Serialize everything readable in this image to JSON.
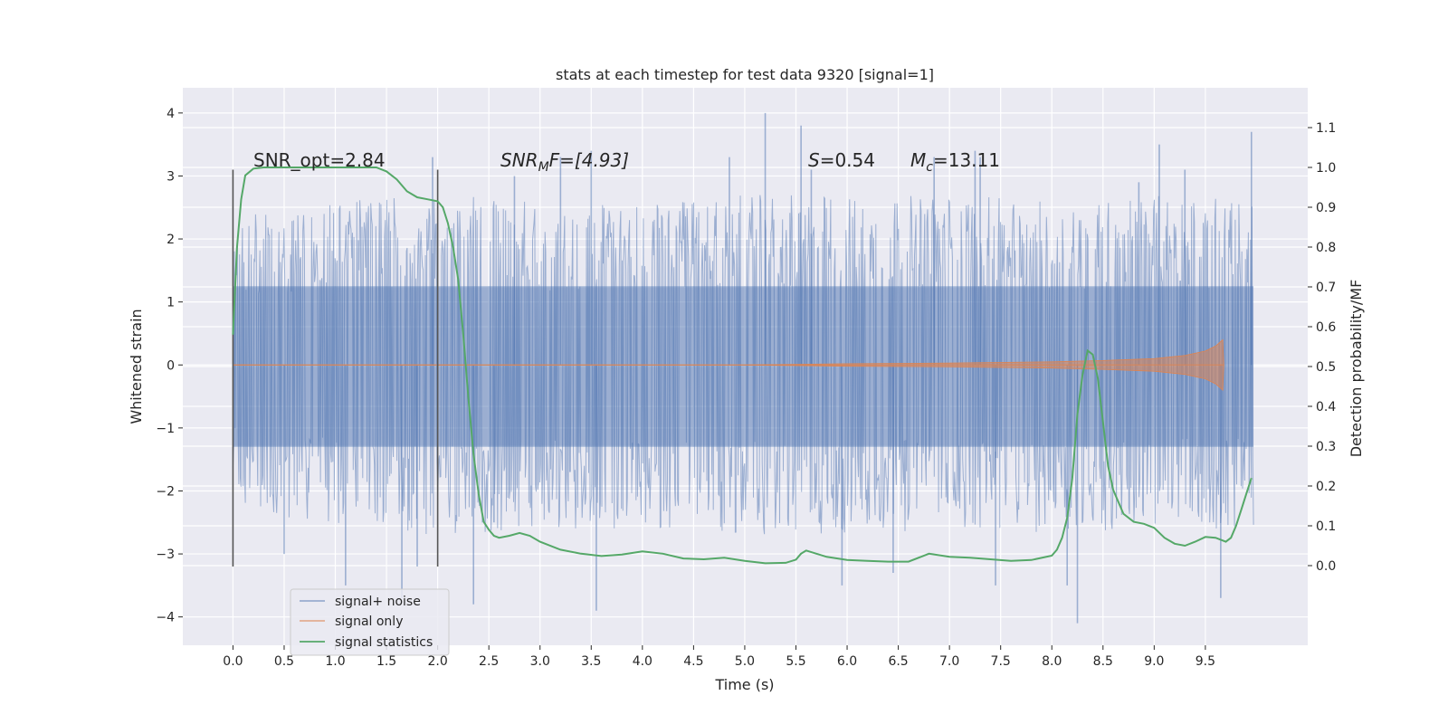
{
  "chart_data": {
    "type": "line",
    "title": "stats at each timestep for test data 9320 [signal=1]",
    "xlabel": "Time (s)",
    "ylabel_left": "Whitened strain",
    "ylabel_right": "Detection probability/MF",
    "xlim": [
      -0.49,
      10.5
    ],
    "ylim_left": [
      -4.45,
      4.4
    ],
    "ylim_right": [
      -0.2,
      1.2
    ],
    "x_ticks": [
      "0.0",
      "0.5",
      "1.0",
      "1.5",
      "2.0",
      "2.5",
      "3.0",
      "3.5",
      "4.0",
      "4.5",
      "5.0",
      "5.5",
      "6.0",
      "6.5",
      "7.0",
      "7.5",
      "8.0",
      "8.5",
      "9.0",
      "9.5"
    ],
    "y_left_ticks": [
      "4",
      "3",
      "2",
      "1",
      "0",
      "−1",
      "−2",
      "−3",
      "−4"
    ],
    "y_right_ticks": [
      "1.1",
      "1.0",
      "0.9",
      "0.8",
      "0.7",
      "0.6",
      "0.5",
      "0.4",
      "0.3",
      "0.2",
      "0.1",
      "0.0"
    ],
    "grid": true,
    "legend_position": "lower-left",
    "annotations": {
      "snr_opt": "SNR_opt=2.84",
      "snr_mf_base": "SNR",
      "snr_mf_sub": "M",
      "snr_mf_rest": "F=[4.93]",
      "s_var": "S",
      "s_value": "=0.54",
      "mc_base": "M",
      "mc_sub": "c",
      "mc_value": "=13.11"
    },
    "window_markers_x": [
      0.0,
      2.0
    ],
    "window_marker_range": [
      -3.2,
      3.1
    ],
    "series": [
      {
        "name": "signal+ noise",
        "color": "#4c72b0",
        "x_range": [
          0.0,
          9.97
        ],
        "band_core": [
          -1.3,
          1.25
        ],
        "envelope_top": [
          [
            0.0,
            2.4
          ],
          [
            1.0,
            2.6
          ],
          [
            2.0,
            2.7
          ],
          [
            3.0,
            2.6
          ],
          [
            4.0,
            2.6
          ],
          [
            5.0,
            2.7
          ],
          [
            6.0,
            2.7
          ],
          [
            7.0,
            2.7
          ],
          [
            8.0,
            2.6
          ],
          [
            9.0,
            2.7
          ],
          [
            9.97,
            2.6
          ]
        ],
        "envelope_bottom": [
          [
            0.0,
            -2.2
          ],
          [
            1.0,
            -2.6
          ],
          [
            2.0,
            -2.7
          ],
          [
            3.0,
            -2.6
          ],
          [
            4.0,
            -2.6
          ],
          [
            5.0,
            -2.7
          ],
          [
            6.0,
            -2.7
          ],
          [
            7.0,
            -2.6
          ],
          [
            8.0,
            -2.7
          ],
          [
            9.0,
            -2.6
          ],
          [
            9.97,
            -2.6
          ]
        ],
        "spikes": [
          [
            1.95,
            3.3
          ],
          [
            2.55,
            -2.5
          ],
          [
            2.75,
            3.0
          ],
          [
            3.2,
            3.3
          ],
          [
            3.5,
            3.4
          ],
          [
            3.55,
            -3.9
          ],
          [
            4.85,
            3.3
          ],
          [
            5.2,
            4.0
          ],
          [
            5.55,
            3.8
          ],
          [
            5.65,
            3.1
          ],
          [
            5.95,
            -3.5
          ],
          [
            6.45,
            -3.3
          ],
          [
            6.85,
            3.3
          ],
          [
            7.25,
            3.4
          ],
          [
            7.3,
            3.3
          ],
          [
            7.45,
            -3.5
          ],
          [
            8.15,
            -3.5
          ],
          [
            8.25,
            -4.1
          ],
          [
            8.85,
            2.9
          ],
          [
            9.05,
            3.5
          ],
          [
            9.3,
            3.1
          ],
          [
            9.65,
            -3.7
          ],
          [
            9.95,
            3.7
          ],
          [
            1.65,
            -3.7
          ],
          [
            1.8,
            -3.2
          ],
          [
            2.35,
            -3.8
          ],
          [
            0.5,
            -3.0
          ],
          [
            1.1,
            -3.5
          ]
        ]
      },
      {
        "name": "signal only",
        "color": "#dd8452",
        "x": [
          0.0,
          5.0,
          6.0,
          7.0,
          8.0,
          8.5,
          9.0,
          9.3,
          9.5,
          9.6,
          9.67,
          9.68
        ],
        "amplitude": [
          0.0,
          0.0,
          0.02,
          0.03,
          0.05,
          0.07,
          0.1,
          0.15,
          0.22,
          0.3,
          0.4,
          0.0
        ]
      },
      {
        "name": "signal statistics",
        "color": "#55a868",
        "axis": "right",
        "x": [
          0.0,
          0.04,
          0.08,
          0.12,
          0.2,
          0.3,
          0.5,
          0.8,
          1.2,
          1.4,
          1.5,
          1.6,
          1.7,
          1.8,
          1.9,
          2.0,
          2.05,
          2.1,
          2.15,
          2.2,
          2.25,
          2.3,
          2.35,
          2.4,
          2.45,
          2.5,
          2.55,
          2.6,
          2.7,
          2.8,
          2.9,
          3.0,
          3.2,
          3.4,
          3.6,
          3.8,
          4.0,
          4.2,
          4.4,
          4.6,
          4.8,
          5.0,
          5.2,
          5.4,
          5.5,
          5.55,
          5.6,
          5.8,
          6.0,
          6.2,
          6.4,
          6.6,
          6.8,
          7.0,
          7.2,
          7.4,
          7.6,
          7.8,
          8.0,
          8.05,
          8.1,
          8.15,
          8.2,
          8.25,
          8.3,
          8.35,
          8.4,
          8.45,
          8.5,
          8.55,
          8.6,
          8.7,
          8.8,
          8.9,
          9.0,
          9.1,
          9.2,
          9.3,
          9.4,
          9.5,
          9.6,
          9.7,
          9.75,
          9.8,
          9.85,
          9.9,
          9.95
        ],
        "values": [
          0.58,
          0.8,
          0.92,
          0.98,
          0.997,
          1.0,
          1.0,
          1.0,
          1.0,
          1.0,
          0.99,
          0.97,
          0.94,
          0.925,
          0.92,
          0.915,
          0.9,
          0.86,
          0.8,
          0.72,
          0.58,
          0.42,
          0.28,
          0.18,
          0.11,
          0.09,
          0.075,
          0.07,
          0.075,
          0.082,
          0.075,
          0.06,
          0.04,
          0.03,
          0.024,
          0.028,
          0.036,
          0.03,
          0.018,
          0.016,
          0.02,
          0.012,
          0.006,
          0.007,
          0.015,
          0.03,
          0.038,
          0.022,
          0.014,
          0.012,
          0.01,
          0.01,
          0.03,
          0.022,
          0.02,
          0.016,
          0.012,
          0.014,
          0.025,
          0.04,
          0.07,
          0.12,
          0.22,
          0.38,
          0.48,
          0.54,
          0.53,
          0.47,
          0.36,
          0.25,
          0.19,
          0.13,
          0.11,
          0.105,
          0.095,
          0.07,
          0.055,
          0.05,
          0.06,
          0.072,
          0.07,
          0.06,
          0.07,
          0.1,
          0.14,
          0.18,
          0.22
        ]
      }
    ]
  }
}
